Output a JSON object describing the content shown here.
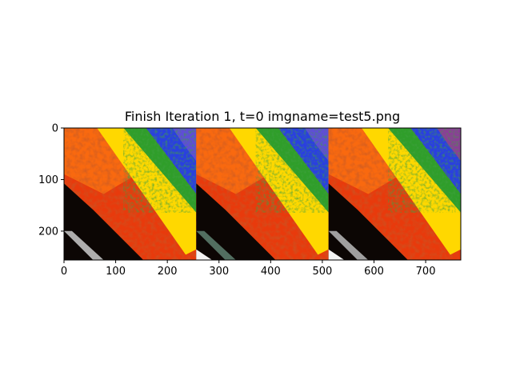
{
  "chart_data": {
    "type": "image",
    "title": "Finish Iteration 1, t=0 imgname=test5.png",
    "xlabel": "",
    "ylabel": "",
    "xlim": [
      0,
      768
    ],
    "ylim": [
      256,
      0
    ],
    "xticks": [
      0,
      100,
      200,
      300,
      400,
      500,
      600,
      700
    ],
    "yticks": [
      0,
      100,
      200
    ],
    "grid": false,
    "legend": "none",
    "panels": [
      {
        "x_start": 0,
        "x_end": 256,
        "content": "painted orange-red field with yellow road band, green grass and blue sky top-right, dark lower-left corner",
        "stroke": "#c0c0c0"
      },
      {
        "x_start": 256,
        "x_end": 512,
        "content": "painted orange-red field with yellow road band, green grass and blue sky top-right, black lower-left corner",
        "stroke": "#5a7a6a"
      },
      {
        "x_start": 512,
        "x_end": 768,
        "content": "painted orange-red field with yellow road band, green grass and blue sky top-right, black lower-left corner",
        "stroke": "#b0b0b0"
      }
    ],
    "colors": {
      "sky": "#2a3fe0",
      "grass": "#2f9e2a",
      "road": "#ffd800",
      "field": "#e83a0c",
      "dark": "#0c0604"
    }
  }
}
